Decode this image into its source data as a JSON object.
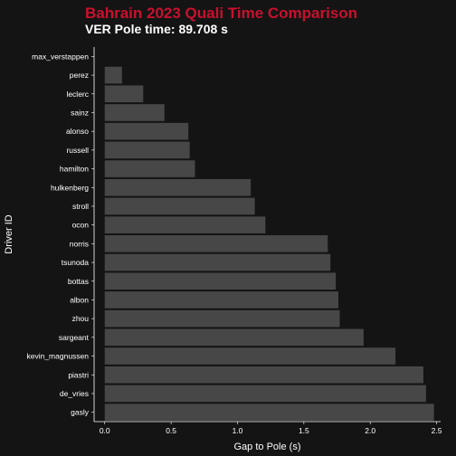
{
  "chart_data": {
    "type": "bar",
    "orientation": "horizontal",
    "title": "Bahrain 2023 Quali Time Comparison",
    "subtitle": "VER Pole time: 89.708 s",
    "xlabel": "Gap to Pole (s)",
    "ylabel": "Driver ID",
    "xlim": [
      -0.08,
      2.53
    ],
    "xticks": [
      0.0,
      0.5,
      1.0,
      1.5,
      2.0,
      2.5
    ],
    "xtick_labels": [
      "0.0",
      "0.5",
      "1.0",
      "1.5",
      "2.0",
      "2.5"
    ],
    "grid": false,
    "colors": {
      "background": "#141414",
      "bar": "#474747",
      "title": "#c8102e",
      "text": "#ffffff",
      "axis": "#ffffff"
    },
    "categories": [
      "max_verstappen",
      "perez",
      "leclerc",
      "sainz",
      "alonso",
      "russell",
      "hamilton",
      "hulkenberg",
      "stroll",
      "ocon",
      "norris",
      "tsunoda",
      "bottas",
      "albon",
      "zhou",
      "sargeant",
      "kevin_magnussen",
      "piastri",
      "de_vries",
      "gasly"
    ],
    "values": [
      0.0,
      0.13,
      0.29,
      0.45,
      0.63,
      0.64,
      0.68,
      1.1,
      1.13,
      1.21,
      1.68,
      1.7,
      1.74,
      1.76,
      1.77,
      1.95,
      2.19,
      2.4,
      2.42,
      2.48
    ]
  }
}
